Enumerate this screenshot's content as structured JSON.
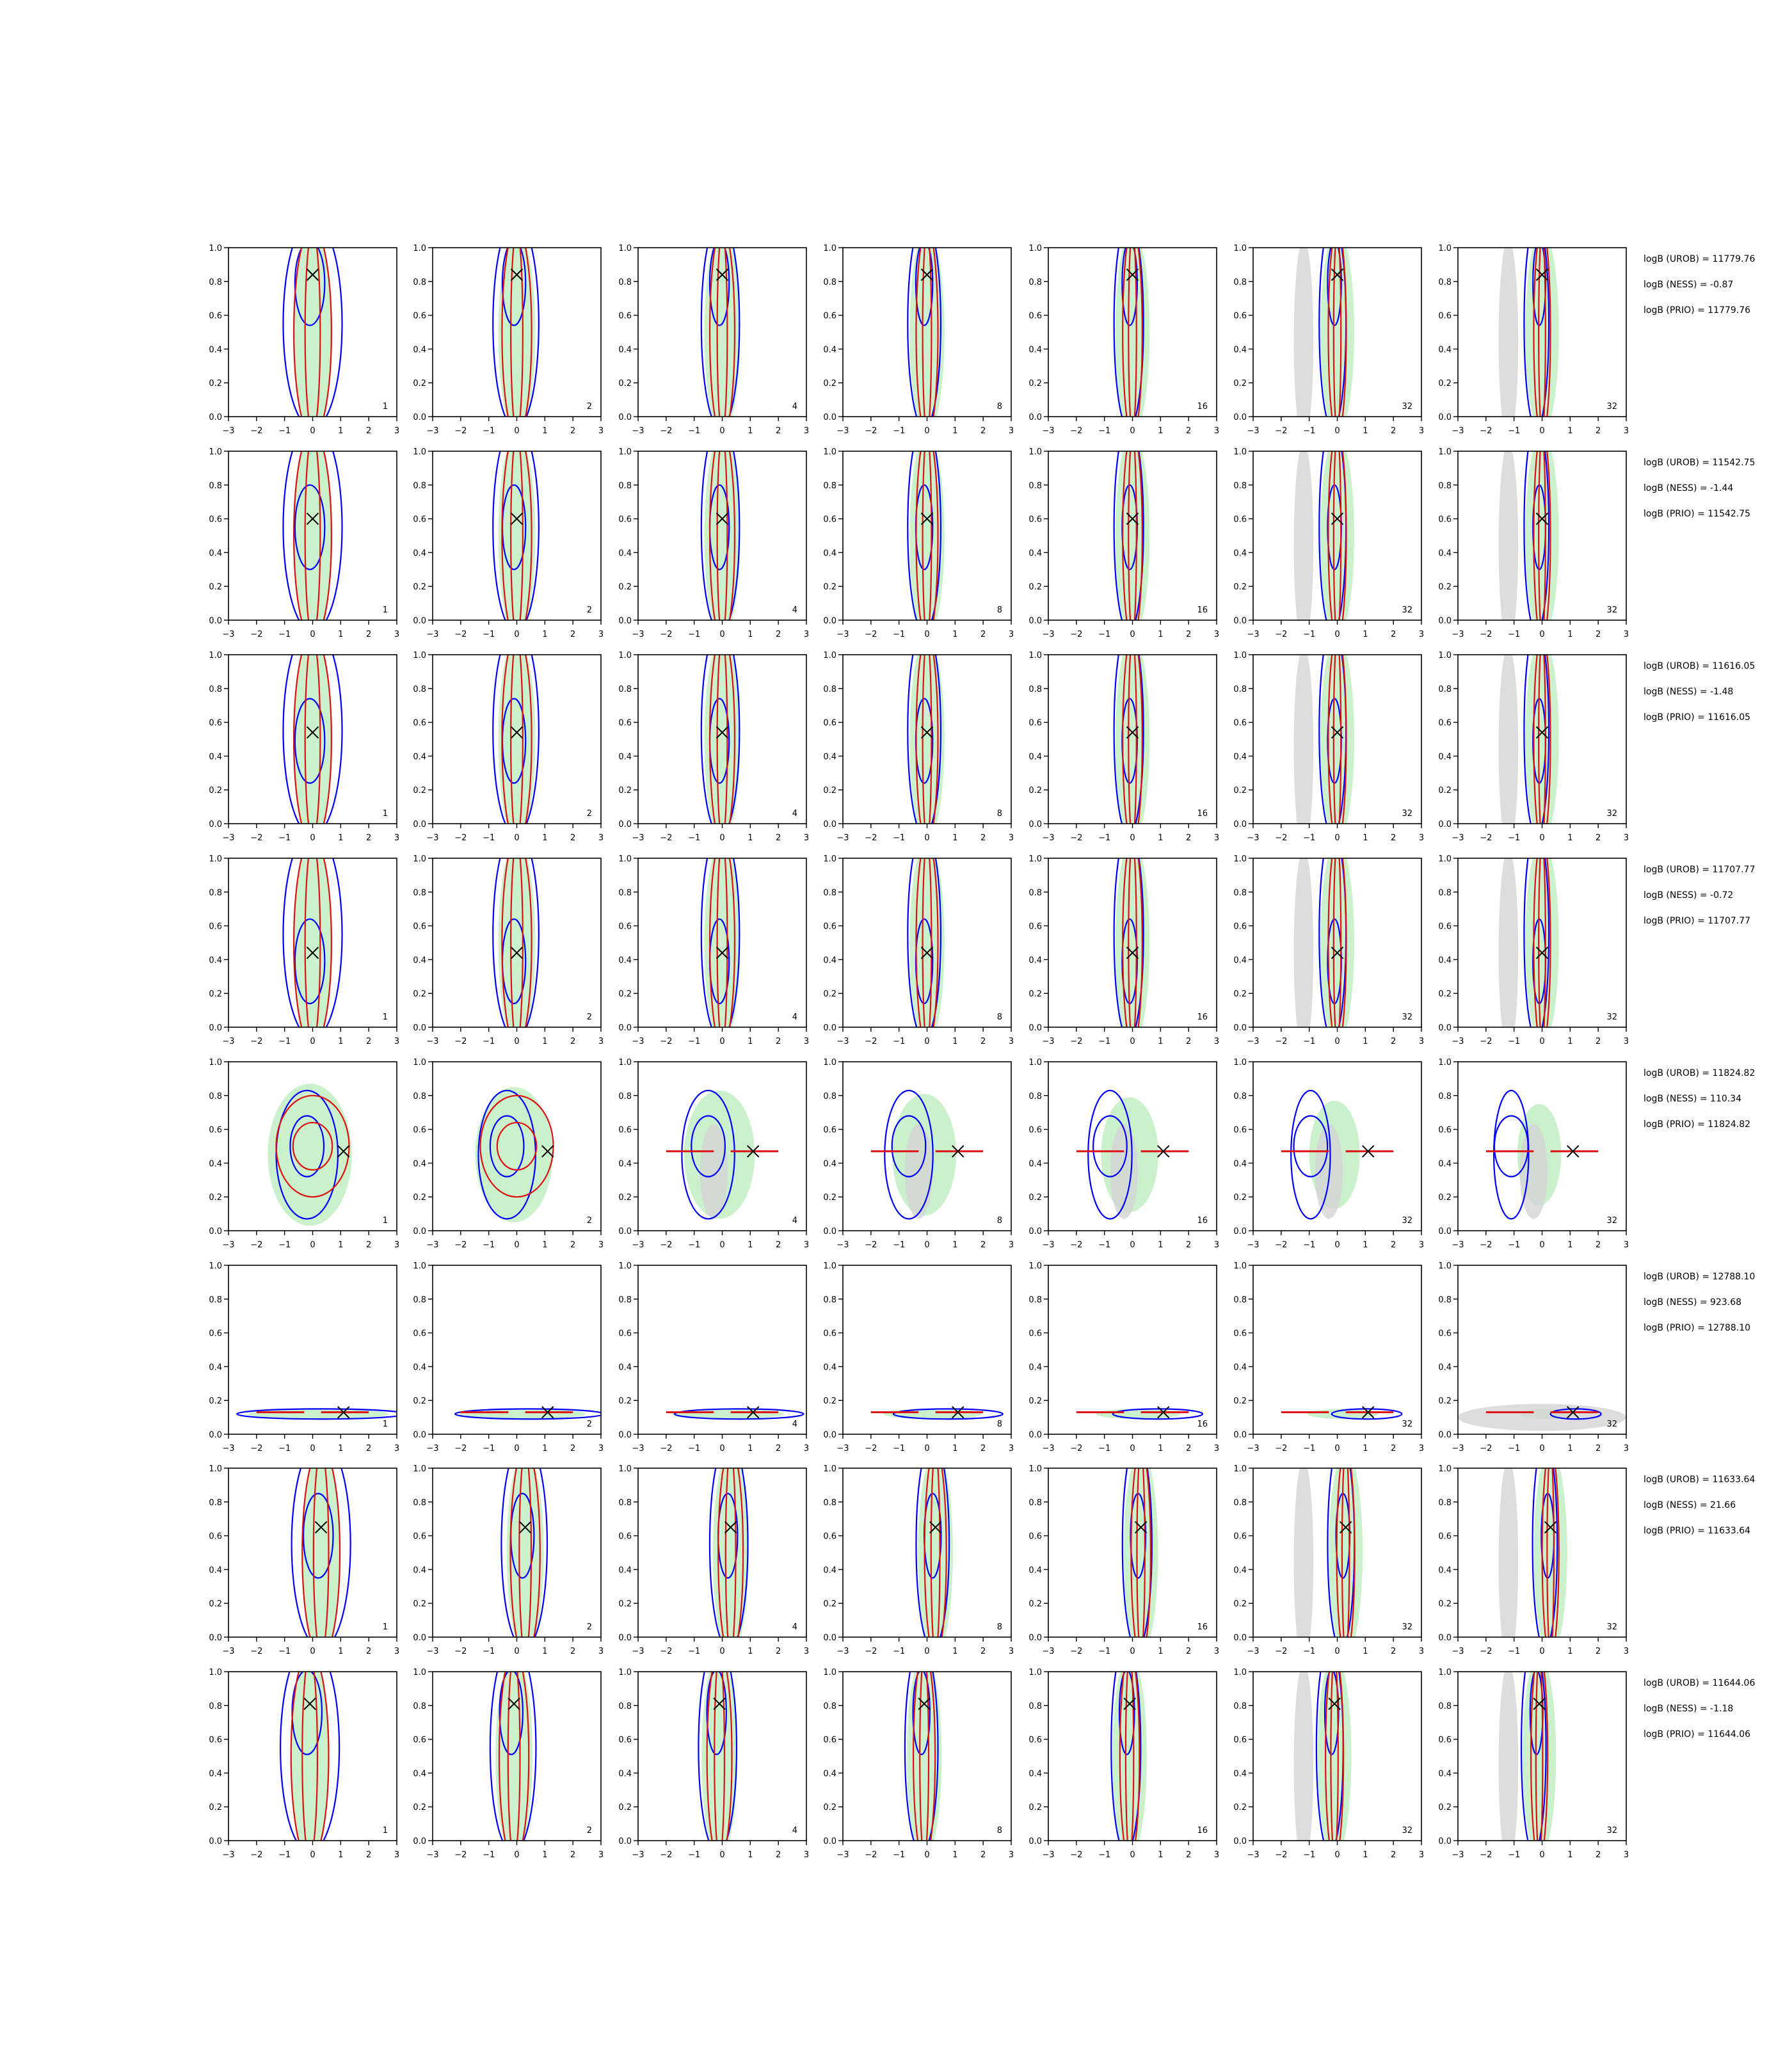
{
  "figure": {
    "columns": [
      "1",
      "2",
      "4",
      "8",
      "16",
      "32",
      "32"
    ],
    "axes": {
      "xlim": [
        -3,
        3
      ],
      "ylim": [
        0.0,
        1.0
      ],
      "xticks": [
        "−3",
        "−2",
        "−1",
        "0",
        "1",
        "2",
        "3"
      ],
      "yticks": [
        "0.0",
        "0.2",
        "0.4",
        "0.6",
        "0.8",
        "1.0"
      ],
      "grid": false
    },
    "colors": {
      "urob": "#0000ff",
      "ness": "#dd1111",
      "filled": "#b9ecbb",
      "prior": "#d4d4d4",
      "marker": "#000000"
    }
  },
  "chart_data": {
    "type": "scatter",
    "title": "",
    "xlabel": "",
    "ylabel": "",
    "xlim": [
      -3,
      3
    ],
    "ylim": [
      0,
      1
    ],
    "rows": [
      {
        "marker": [
          0.0,
          0.84
        ],
        "shape": "vertical",
        "logB": [
          "logB (UROB) = 11779.76",
          "logB (NESS) = -0.87",
          "logB (PRIO) = 11779.76"
        ]
      },
      {
        "marker": [
          0.0,
          0.6
        ],
        "shape": "vertical",
        "logB": [
          "logB (UROB) = 11542.75",
          "logB (NESS) = -1.44",
          "logB (PRIO) = 11542.75"
        ]
      },
      {
        "marker": [
          0.0,
          0.54
        ],
        "shape": "vertical",
        "logB": [
          "logB (UROB) = 11616.05",
          "logB (NESS) = -1.48",
          "logB (PRIO) = 11616.05"
        ]
      },
      {
        "marker": [
          0.0,
          0.44
        ],
        "shape": "vertical",
        "logB": [
          "logB (UROB) = 11707.77",
          "logB (NESS) = -0.72",
          "logB (PRIO) = 11707.77"
        ]
      },
      {
        "marker": [
          1.1,
          0.47
        ],
        "shape": "blob",
        "logB": [
          "logB (UROB) = 11824.82",
          "logB (NESS) = 110.34",
          "logB (PRIO) = 11824.82"
        ]
      },
      {
        "marker": [
          1.1,
          0.13
        ],
        "shape": "flat",
        "logB": [
          "logB (UROB) = 12788.10",
          "logB (NESS) = 923.68",
          "logB (PRIO) = 12788.10"
        ]
      },
      {
        "marker": [
          0.3,
          0.65
        ],
        "shape": "vertical",
        "logB": [
          "logB (UROB) = 11633.64",
          "logB (NESS) = 21.66",
          "logB (PRIO) = 11633.64"
        ]
      },
      {
        "marker": [
          -0.1,
          0.81
        ],
        "shape": "vertical",
        "logB": [
          "logB (UROB) = 11644.06",
          "logB (NESS) = -1.18",
          "logB (PRIO) = 11644.06"
        ]
      }
    ]
  }
}
